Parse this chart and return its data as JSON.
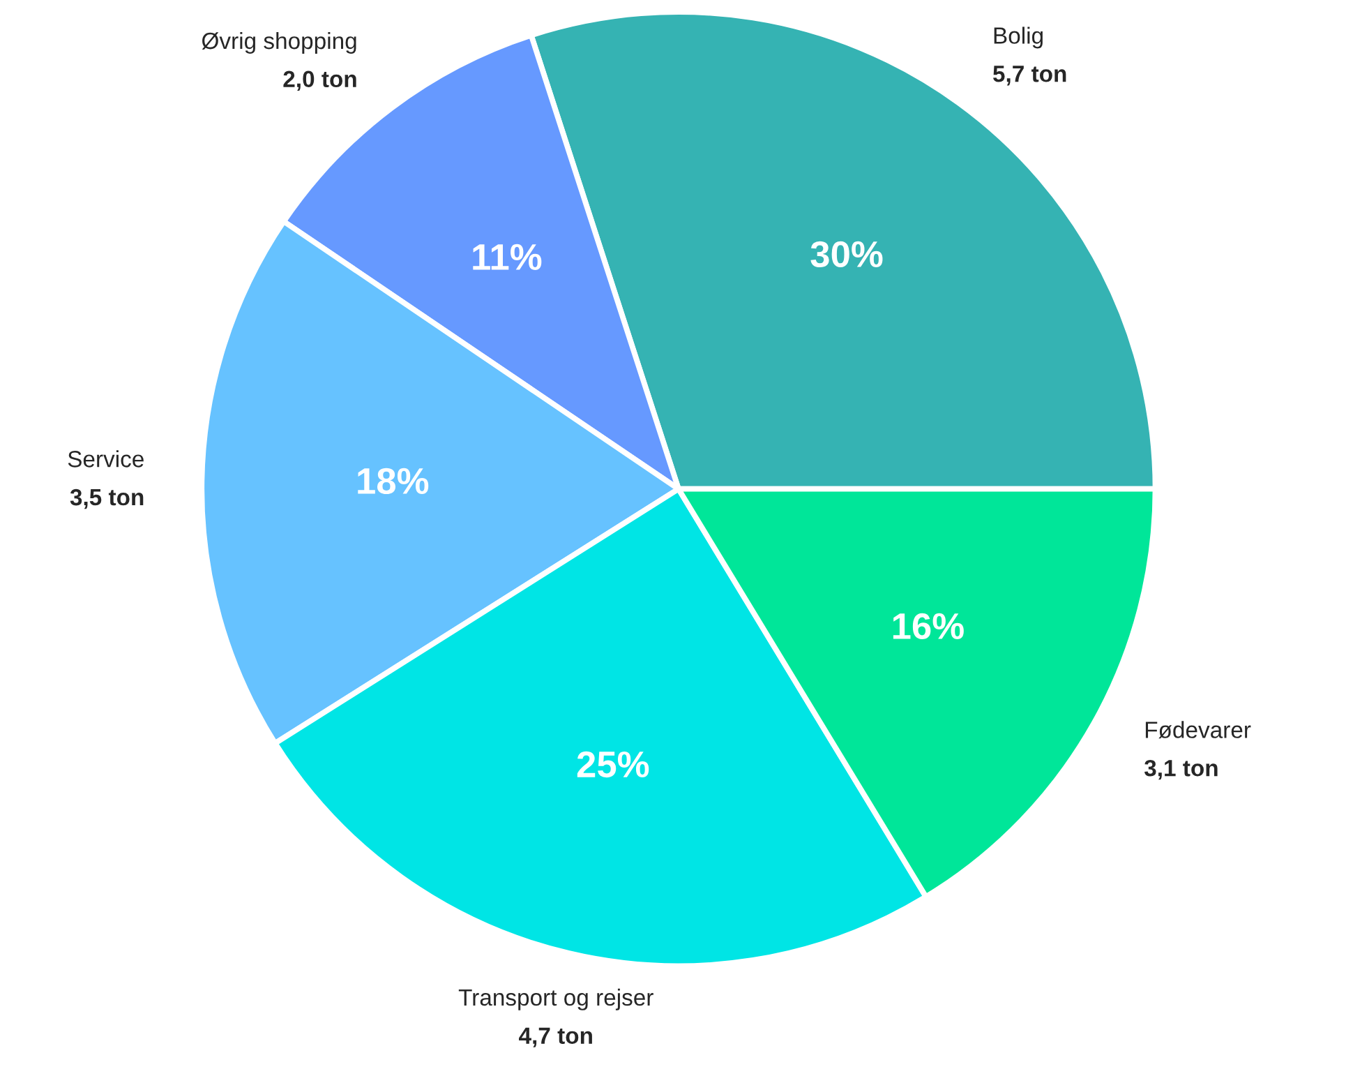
{
  "chart_data": {
    "type": "pie",
    "categories": [
      "Bolig",
      "Øvrig shopping",
      "Service",
      "Transport og rejser",
      "Fødevarer"
    ],
    "values": [
      5.7,
      2.0,
      3.5,
      4.7,
      3.1
    ],
    "value_labels": [
      "5,7 ton",
      "2,0 ton",
      "3,5 ton",
      "4,7 ton",
      "3,1 ton"
    ],
    "colors": [
      "#35b3b3",
      "#6699ff",
      "#66c2ff",
      "#00e5e5",
      "#00e699"
    ],
    "annotations": [
      {
        "text": "30%",
        "x": "Bolig"
      },
      {
        "text": "11%",
        "x": "Øvrig shopping"
      },
      {
        "text": "18%",
        "x": "Service"
      },
      {
        "text": "25%",
        "x": "Transport og rejser"
      },
      {
        "text": "16%",
        "x": "Fødevarer"
      }
    ],
    "legend": false
  }
}
